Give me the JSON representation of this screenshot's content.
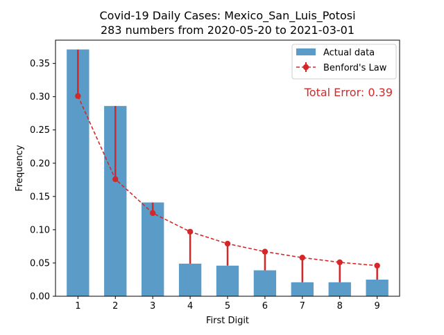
{
  "chart_data": {
    "type": "bar",
    "title": "Covid-19 Daily Cases: Mexico_San_Luis_Potosi",
    "subtitle": "283 numbers from 2020-05-20 to 2021-03-01",
    "xlabel": "First Digit",
    "ylabel": "Frequency",
    "categories": [
      "1",
      "2",
      "3",
      "4",
      "5",
      "6",
      "7",
      "8",
      "9"
    ],
    "ylim": [
      0,
      0.385
    ],
    "yticks": [
      0.0,
      0.05,
      0.1,
      0.15,
      0.2,
      0.25,
      0.3,
      0.35
    ],
    "ytick_labels": [
      "0.00",
      "0.05",
      "0.10",
      "0.15",
      "0.20",
      "0.25",
      "0.30",
      "0.35"
    ],
    "grid": false,
    "legend_position": "top-right",
    "series": [
      {
        "name": "Actual data",
        "kind": "bar",
        "color": "#5b9bc8",
        "values": [
          0.371,
          0.286,
          0.141,
          0.049,
          0.046,
          0.039,
          0.021,
          0.021,
          0.025
        ]
      },
      {
        "name": "Benford's Law",
        "kind": "line",
        "color": "#d62728",
        "values": [
          0.301,
          0.176,
          0.125,
          0.097,
          0.079,
          0.067,
          0.058,
          0.051,
          0.046
        ]
      }
    ],
    "annotation": "Total Error: 0.39"
  }
}
